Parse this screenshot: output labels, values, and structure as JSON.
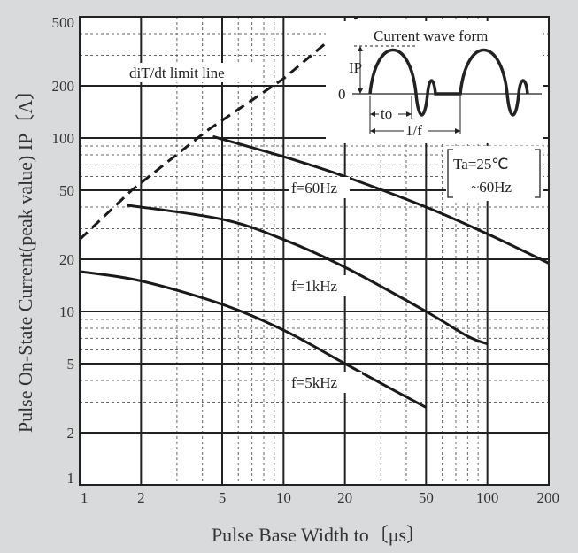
{
  "chart_data": {
    "type": "line",
    "x_scale": "log",
    "y_scale": "log",
    "xlim": [
      1,
      200
    ],
    "ylim": [
      1,
      500
    ],
    "xlabel": "Pulse Base Width  to〔μs〕",
    "ylabel": "Pulse On-State Current(peak value) IP〔A〕",
    "x_ticks": [
      1,
      2,
      5,
      10,
      20,
      50,
      100,
      200
    ],
    "x_tick_labels": [
      "1",
      "2",
      "5",
      "10",
      "20",
      "50",
      "100",
      "200"
    ],
    "y_ticks": [
      1,
      2,
      5,
      10,
      20,
      50,
      100,
      200,
      500
    ],
    "y_tick_labels": [
      "1",
      "2",
      "5",
      "10",
      "20",
      "50",
      "100",
      "200",
      "500"
    ],
    "grid": true,
    "series": [
      {
        "name": "diT/dt limit line",
        "style": "dashed",
        "points": [
          [
            1,
            26
          ],
          [
            1.8,
            50
          ],
          [
            4.2,
            110
          ],
          [
            10,
            220
          ],
          [
            23,
            500
          ]
        ]
      },
      {
        "name": "f=60Hz",
        "style": "solid",
        "points": [
          [
            4.5,
            102
          ],
          [
            10,
            78
          ],
          [
            20,
            60
          ],
          [
            50,
            40
          ],
          [
            100,
            28
          ],
          [
            200,
            19
          ]
        ]
      },
      {
        "name": "f=1kHz",
        "style": "solid",
        "points": [
          [
            1.7,
            41
          ],
          [
            5,
            34
          ],
          [
            10,
            26
          ],
          [
            20,
            18
          ],
          [
            50,
            10
          ],
          [
            80,
            7.2
          ],
          [
            100,
            6.5
          ]
        ]
      },
      {
        "name": "f=5kHz",
        "style": "solid",
        "points": [
          [
            1,
            17
          ],
          [
            2,
            15
          ],
          [
            5,
            11
          ],
          [
            10,
            7.8
          ],
          [
            20,
            5
          ],
          [
            35,
            3.5
          ],
          [
            50,
            2.8
          ]
        ]
      }
    ],
    "annotations": {
      "limit_line_label": "diT/dt limit line",
      "conditions": [
        "Ta=25℃",
        "~60Hz"
      ],
      "inset_title": "Current wave form",
      "inset_ip_label": "IP",
      "inset_zero_label": "0",
      "inset_to_label": "to",
      "inset_period_label": "1/f"
    }
  },
  "colors": {
    "background": "#d9dadb",
    "plot_background": "#ffffff",
    "line": "#222222"
  }
}
